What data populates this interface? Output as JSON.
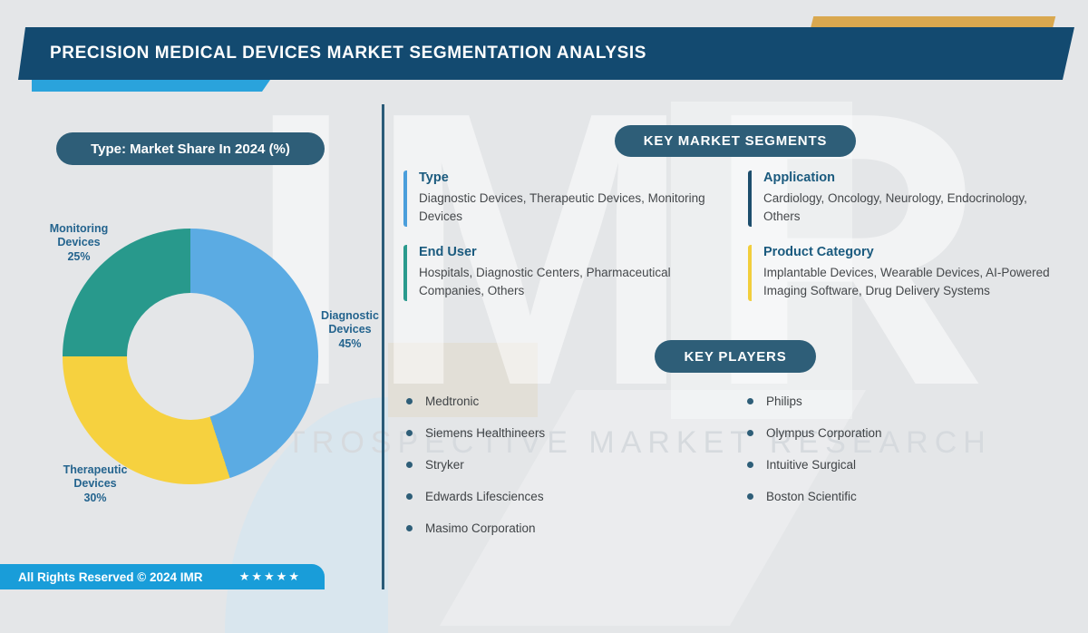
{
  "header": {
    "title": "PRECISION MEDICAL DEVICES MARKET SEGMENTATION ANALYSIS"
  },
  "chart_data": {
    "type": "pie",
    "donut": true,
    "title": "Type: Market Share In 2024 (%)",
    "slices": [
      {
        "label": "Diagnostic Devices",
        "pct": "45%",
        "value": 45,
        "color": "#5babe3"
      },
      {
        "label": "Therapeutic Devices",
        "pct": "30%",
        "value": 30,
        "color": "#f6d13f"
      },
      {
        "label": "Monitoring Devices",
        "pct": "25%",
        "value": 25,
        "color": "#28998c"
      }
    ],
    "start_angle_deg": 0,
    "direction": "clockwise",
    "legend": "labels-around-chart"
  },
  "segments": {
    "badge": "KEY MARKET SEGMENTS",
    "items": [
      {
        "title": "Type",
        "text": "Diagnostic Devices, Therapeutic Devices, Monitoring Devices",
        "bar_color": "#4a9edb"
      },
      {
        "title": "Application",
        "text": "Cardiology, Oncology, Neurology, Endocrinology, Others",
        "bar_color": "#1d4e6d"
      },
      {
        "title": "End User",
        "text": "Hospitals, Diagnostic Centers, Pharmaceutical Companies, Others",
        "bar_color": "#2a9a8d"
      },
      {
        "title": "Product Category",
        "text": "Implantable Devices, Wearable Devices, AI-Powered Imaging Software, Drug Delivery Systems",
        "bar_color": "#f2ce3c"
      }
    ]
  },
  "players": {
    "badge": "KEY PLAYERS",
    "column1": [
      "Medtronic",
      "Siemens Healthineers",
      "Stryker",
      "Edwards Lifesciences",
      "Masimo Corporation"
    ],
    "column2": [
      "Philips",
      "Olympus Corporation",
      "Intuitive Surgical",
      "Boston Scientific"
    ]
  },
  "footer": {
    "text": "All Rights Reserved © 2024 IMR",
    "stars": "★★★★★"
  },
  "watermark": {
    "letters": "IMR",
    "line": "INTROSPECTIVE MARKET RESEARCH"
  },
  "colors": {
    "background": "#e4e6e8",
    "banner": "#134a70",
    "pill": "#2e5e78",
    "accent_bar": "#2aa3dc",
    "gold_bar": "#d9a84f",
    "footer_bar": "#199dd9",
    "divider": "#2a5b78",
    "heading_text": "#1a5a7e",
    "body_text": "#45484b",
    "chart_label_text": "#24648e"
  }
}
